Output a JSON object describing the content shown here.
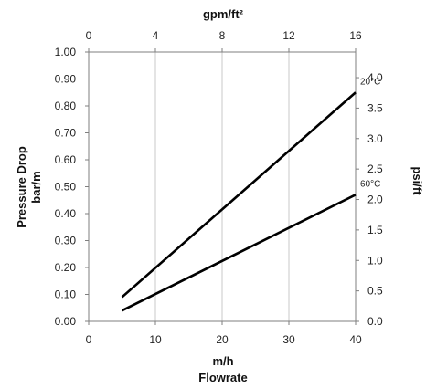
{
  "chart_data": {
    "type": "line",
    "x_unit_bottom": "m/h",
    "xlabel": "Flowrate",
    "x_top_label": "gpm/ft²",
    "ylabel_line1": "Pressure Drop",
    "ylabel_line2": "bar/m",
    "y_right_label": "psi/ft",
    "xlim": [
      0,
      40
    ],
    "ylim": [
      0,
      1.0
    ],
    "x_top_lim": [
      0,
      16
    ],
    "y_right_lim": [
      0,
      4.42
    ],
    "x_ticks": [
      "0",
      "10",
      "20",
      "30",
      "40"
    ],
    "x_top_ticks": [
      "0",
      "4",
      "8",
      "12",
      "16"
    ],
    "y_ticks": [
      "0.00",
      "0.10",
      "0.20",
      "0.30",
      "0.40",
      "0.50",
      "0.60",
      "0.70",
      "0.80",
      "0.90",
      "1.00"
    ],
    "y_right_ticks": [
      "0.0",
      "0.5",
      "1.0",
      "1.5",
      "2.0",
      "2.5",
      "3.0",
      "3.5",
      "4.0"
    ],
    "grid": "vertical",
    "series": [
      {
        "name": "20°C",
        "x": [
          5,
          40
        ],
        "y": [
          0.09,
          0.85
        ]
      },
      {
        "name": "60°C",
        "x": [
          5,
          40
        ],
        "y": [
          0.04,
          0.47
        ]
      }
    ],
    "colors": {
      "line": "#000000",
      "grid": "#c8c8c8",
      "axis": "#7f7f7f"
    }
  }
}
